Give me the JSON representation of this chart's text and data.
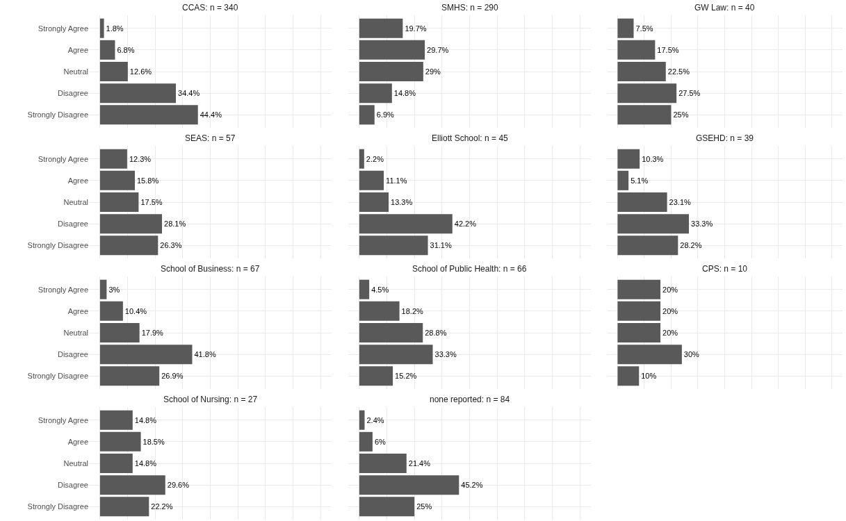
{
  "chart_data": [
    {
      "type": "bar",
      "orientation": "horizontal",
      "title": "CCAS: n = 340",
      "categories": [
        "Strongly Agree",
        "Agree",
        "Neutral",
        "Disagree",
        "Strongly Disagree"
      ],
      "values": [
        1.8,
        6.8,
        12.6,
        34.4,
        44.4
      ],
      "value_labels": [
        "1.8%",
        "6.8%",
        "12.6%",
        "34.4%",
        "44.4%"
      ],
      "color": "#595959",
      "xlim": [
        -5,
        105
      ],
      "xticks": [
        {
          "value": 0,
          "label": null
        },
        {
          "value": 12.5,
          "label": null
        },
        {
          "value": 25,
          "label": null
        },
        {
          "value": 37.5,
          "label": null
        },
        {
          "value": 50,
          "label": null
        },
        {
          "value": 62.5,
          "label": null
        },
        {
          "value": 75,
          "label": null
        },
        {
          "value": 87.5,
          "label": null
        },
        {
          "value": 100,
          "label": null
        }
      ],
      "grid": true,
      "tick_labels": "y"
    },
    {
      "type": "bar",
      "orientation": "horizontal",
      "title": "SMHS: n = 290",
      "categories": [
        "Strongly Agree",
        "Agree",
        "Neutral",
        "Disagree",
        "Strongly Disagree"
      ],
      "values": [
        19.7,
        29.7,
        29,
        14.8,
        6.9
      ],
      "value_labels": [
        "19.7%",
        "29.7%",
        "29%",
        "14.8%",
        "6.9%"
      ],
      "color": "#595959",
      "xlim": [
        -5,
        105
      ],
      "xticks": [
        {
          "value": 0,
          "label": null
        },
        {
          "value": 12.5,
          "label": null
        },
        {
          "value": 25,
          "label": null
        },
        {
          "value": 37.5,
          "label": null
        },
        {
          "value": 50,
          "label": null
        },
        {
          "value": 62.5,
          "label": null
        },
        {
          "value": 75,
          "label": null
        },
        {
          "value": 87.5,
          "label": null
        },
        {
          "value": 100,
          "label": null
        }
      ],
      "grid": true,
      "tick_labels": false
    },
    {
      "type": "bar",
      "orientation": "horizontal",
      "title": "GW Law: n = 40",
      "categories": [
        "Strongly Agree",
        "Agree",
        "Neutral",
        "Disagree",
        "Strongly Disagree"
      ],
      "values": [
        7.5,
        17.5,
        22.5,
        27.5,
        25
      ],
      "value_labels": [
        "7.5%",
        "17.5%",
        "22.5%",
        "27.5%",
        "25%"
      ],
      "color": "#595959",
      "xlim": [
        -5,
        105
      ],
      "xticks": [
        {
          "value": 0,
          "label": null
        },
        {
          "value": 12.5,
          "label": null
        },
        {
          "value": 25,
          "label": null
        },
        {
          "value": 37.5,
          "label": null
        },
        {
          "value": 50,
          "label": null
        },
        {
          "value": 62.5,
          "label": null
        },
        {
          "value": 75,
          "label": null
        },
        {
          "value": 87.5,
          "label": null
        },
        {
          "value": 100,
          "label": null
        }
      ],
      "grid": true,
      "tick_labels": false
    },
    {
      "type": "bar",
      "orientation": "horizontal",
      "title": "SEAS: n = 57",
      "categories": [
        "Strongly Agree",
        "Agree",
        "Neutral",
        "Disagree",
        "Strongly Disagree"
      ],
      "values": [
        12.3,
        15.8,
        17.5,
        28.1,
        26.3
      ],
      "value_labels": [
        "12.3%",
        "15.8%",
        "17.5%",
        "28.1%",
        "26.3%"
      ],
      "color": "#595959",
      "xlim": [
        -5,
        105
      ],
      "xticks": [
        {
          "value": 0,
          "label": null
        },
        {
          "value": 12.5,
          "label": null
        },
        {
          "value": 25,
          "label": null
        },
        {
          "value": 37.5,
          "label": null
        },
        {
          "value": 50,
          "label": null
        },
        {
          "value": 62.5,
          "label": null
        },
        {
          "value": 75,
          "label": null
        },
        {
          "value": 87.5,
          "label": null
        },
        {
          "value": 100,
          "label": null
        }
      ],
      "grid": true,
      "tick_labels": "y"
    },
    {
      "type": "bar",
      "orientation": "horizontal",
      "title": "Elliott School: n = 45",
      "categories": [
        "Strongly Agree",
        "Agree",
        "Neutral",
        "Disagree",
        "Strongly Disagree"
      ],
      "values": [
        2.2,
        11.1,
        13.3,
        42.2,
        31.1
      ],
      "value_labels": [
        "2.2%",
        "11.1%",
        "13.3%",
        "42.2%",
        "31.1%"
      ],
      "color": "#595959",
      "xlim": [
        -5,
        105
      ],
      "xticks": [
        {
          "value": 0,
          "label": null
        },
        {
          "value": 12.5,
          "label": null
        },
        {
          "value": 25,
          "label": null
        },
        {
          "value": 37.5,
          "label": null
        },
        {
          "value": 50,
          "label": null
        },
        {
          "value": 62.5,
          "label": null
        },
        {
          "value": 75,
          "label": null
        },
        {
          "value": 87.5,
          "label": null
        },
        {
          "value": 100,
          "label": null
        }
      ],
      "grid": true,
      "tick_labels": false
    },
    {
      "type": "bar",
      "orientation": "horizontal",
      "title": "GSEHD: n = 39",
      "categories": [
        "Strongly Agree",
        "Agree",
        "Neutral",
        "Disagree",
        "Strongly Disagree"
      ],
      "values": [
        10.3,
        5.1,
        23.1,
        33.3,
        28.2
      ],
      "value_labels": [
        "10.3%",
        "5.1%",
        "23.1%",
        "33.3%",
        "28.2%"
      ],
      "color": "#595959",
      "xlim": [
        -5,
        105
      ],
      "xticks": [
        {
          "value": 0,
          "label": null
        },
        {
          "value": 12.5,
          "label": null
        },
        {
          "value": 25,
          "label": null
        },
        {
          "value": 37.5,
          "label": null
        },
        {
          "value": 50,
          "label": null
        },
        {
          "value": 62.5,
          "label": null
        },
        {
          "value": 75,
          "label": null
        },
        {
          "value": 87.5,
          "label": null
        },
        {
          "value": 100,
          "label": null
        }
      ],
      "grid": true,
      "tick_labels": false
    },
    {
      "type": "bar",
      "orientation": "horizontal",
      "title": "School of Business: n = 67",
      "categories": [
        "Strongly Agree",
        "Agree",
        "Neutral",
        "Disagree",
        "Strongly Disagree"
      ],
      "values": [
        3,
        10.4,
        17.9,
        41.8,
        26.9
      ],
      "value_labels": [
        "3%",
        "10.4%",
        "17.9%",
        "41.8%",
        "26.9%"
      ],
      "color": "#595959",
      "xlim": [
        -5,
        105
      ],
      "xticks": [
        {
          "value": 0,
          "label": null
        },
        {
          "value": 12.5,
          "label": null
        },
        {
          "value": 25,
          "label": null
        },
        {
          "value": 37.5,
          "label": null
        },
        {
          "value": 50,
          "label": null
        },
        {
          "value": 62.5,
          "label": null
        },
        {
          "value": 75,
          "label": null
        },
        {
          "value": 87.5,
          "label": null
        },
        {
          "value": 100,
          "label": null
        }
      ],
      "grid": true,
      "tick_labels": "y"
    },
    {
      "type": "bar",
      "orientation": "horizontal",
      "title": "School of Public Health: n = 66",
      "categories": [
        "Strongly Agree",
        "Agree",
        "Neutral",
        "Disagree",
        "Strongly Disagree"
      ],
      "values": [
        4.5,
        18.2,
        28.8,
        33.3,
        15.2
      ],
      "value_labels": [
        "4.5%",
        "18.2%",
        "28.8%",
        "33.3%",
        "15.2%"
      ],
      "color": "#595959",
      "xlim": [
        -5,
        105
      ],
      "xticks": [
        {
          "value": 0,
          "label": null
        },
        {
          "value": 12.5,
          "label": null
        },
        {
          "value": 25,
          "label": null
        },
        {
          "value": 37.5,
          "label": null
        },
        {
          "value": 50,
          "label": null
        },
        {
          "value": 62.5,
          "label": null
        },
        {
          "value": 75,
          "label": null
        },
        {
          "value": 87.5,
          "label": null
        },
        {
          "value": 100,
          "label": null
        }
      ],
      "grid": true,
      "tick_labels": false
    },
    {
      "type": "bar",
      "orientation": "horizontal",
      "title": "CPS: n = 10",
      "categories": [
        "Strongly Agree",
        "Agree",
        "Neutral",
        "Disagree",
        "Strongly Disagree"
      ],
      "values": [
        20,
        20,
        20,
        30,
        10
      ],
      "value_labels": [
        "20%",
        "20%",
        "20%",
        "30%",
        "10%"
      ],
      "color": "#595959",
      "xlim": [
        -5,
        105
      ],
      "xticks": [
        {
          "value": 0,
          "label": null
        },
        {
          "value": 12.5,
          "label": null
        },
        {
          "value": 25,
          "label": null
        },
        {
          "value": 37.5,
          "label": null
        },
        {
          "value": 50,
          "label": null
        },
        {
          "value": 62.5,
          "label": null
        },
        {
          "value": 75,
          "label": null
        },
        {
          "value": 87.5,
          "label": null
        },
        {
          "value": 100,
          "label": null
        }
      ],
      "grid": true,
      "tick_labels": false
    },
    {
      "type": "bar",
      "orientation": "horizontal",
      "title": "School of Nursing: n = 27",
      "categories": [
        "Strongly Agree",
        "Agree",
        "Neutral",
        "Disagree",
        "Strongly Disagree"
      ],
      "values": [
        14.8,
        18.5,
        14.8,
        29.6,
        22.2
      ],
      "value_labels": [
        "14.8%",
        "18.5%",
        "14.8%",
        "29.6%",
        "22.2%"
      ],
      "color": "#595959",
      "xlim": [
        -5,
        105
      ],
      "xticks": [
        {
          "value": 0,
          "label": null
        },
        {
          "value": 12.5,
          "label": null
        },
        {
          "value": 25,
          "label": null
        },
        {
          "value": 37.5,
          "label": null
        },
        {
          "value": 50,
          "label": null
        },
        {
          "value": 62.5,
          "label": null
        },
        {
          "value": 75,
          "label": null
        },
        {
          "value": 87.5,
          "label": null
        },
        {
          "value": 100,
          "label": null
        }
      ],
      "grid": true,
      "tick_labels": "y"
    },
    {
      "type": "bar",
      "orientation": "horizontal",
      "title": "none reported: n = 84",
      "categories": [
        "Strongly Agree",
        "Agree",
        "Neutral",
        "Disagree",
        "Strongly Disagree"
      ],
      "values": [
        2.4,
        6,
        21.4,
        45.2,
        25
      ],
      "value_labels": [
        "2.4%",
        "6%",
        "21.4%",
        "45.2%",
        "25%"
      ],
      "color": "#595959",
      "xlim": [
        -5,
        105
      ],
      "xticks": [
        {
          "value": 0,
          "label": null
        },
        {
          "value": 12.5,
          "label": null
        },
        {
          "value": 25,
          "label": null
        },
        {
          "value": 37.5,
          "label": null
        },
        {
          "value": 50,
          "label": null
        },
        {
          "value": 62.5,
          "label": null
        },
        {
          "value": 75,
          "label": null
        },
        {
          "value": 87.5,
          "label": null
        },
        {
          "value": 100,
          "label": null
        }
      ],
      "grid": true,
      "tick_labels": false
    }
  ]
}
